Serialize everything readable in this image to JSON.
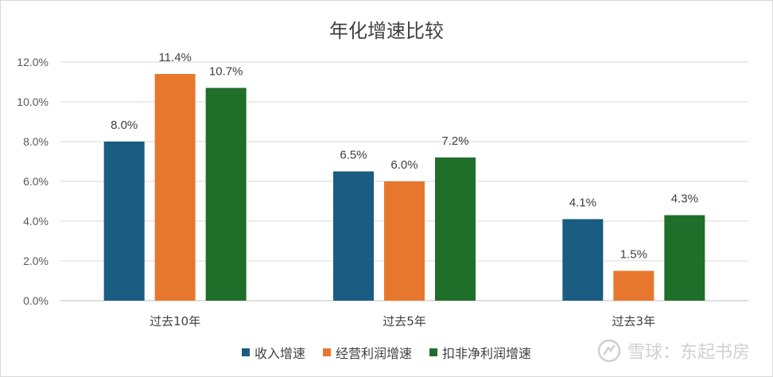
{
  "chart_data": {
    "type": "bar",
    "title": "年化增速比较",
    "categories": [
      "过去10年",
      "过去5年",
      "过去3年"
    ],
    "series": [
      {
        "name": "收入增速",
        "values": [
          8.0,
          6.5,
          4.1
        ],
        "labels": [
          "8.0%",
          "6.5%",
          "4.1%"
        ],
        "color": "#1a5c82"
      },
      {
        "name": "经营利润增速",
        "values": [
          11.4,
          6.0,
          1.5
        ],
        "labels": [
          "11.4%",
          "6.0%",
          "1.5%"
        ],
        "color": "#e8772e"
      },
      {
        "name": "扣非净利润增速",
        "values": [
          10.7,
          7.2,
          4.3
        ],
        "labels": [
          "10.7%",
          "7.2%",
          "4.3%"
        ],
        "color": "#1f6e2a"
      }
    ],
    "y_ticks": [
      "0.0%",
      "2.0%",
      "4.0%",
      "6.0%",
      "8.0%",
      "10.0%",
      "12.0%"
    ],
    "ylim": [
      0,
      12
    ],
    "grid": true,
    "legend_position": "bottom"
  },
  "watermark": {
    "text": "雪球：东起书房",
    "icon": "snowball-logo-icon"
  }
}
